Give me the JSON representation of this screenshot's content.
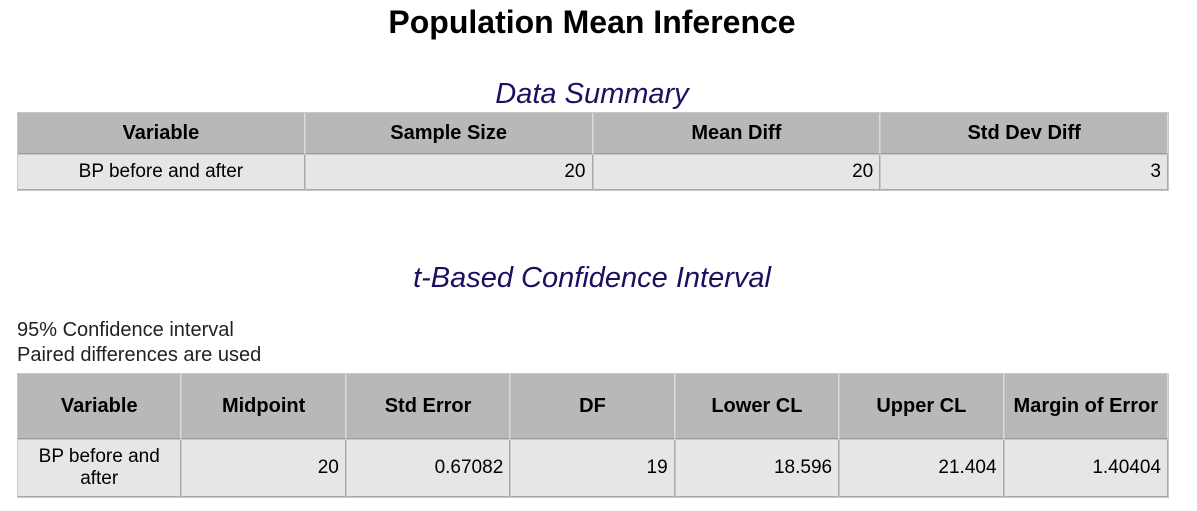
{
  "title": "Population Mean Inference",
  "data_summary": {
    "title": "Data Summary",
    "headers": [
      "Variable",
      "Sample Size",
      "Mean Diff",
      "Std Dev Diff"
    ],
    "row": {
      "variable": "BP before and after",
      "sample_size": "20",
      "mean_diff": "20",
      "std_dev_diff": "3"
    }
  },
  "confidence_interval": {
    "title": "t-Based Confidence Interval",
    "notes": [
      "95% Confidence interval",
      "Paired differences are used"
    ],
    "headers": [
      "Variable",
      "Midpoint",
      "Std Error",
      "DF",
      "Lower CL",
      "Upper CL",
      "Margin of Error"
    ],
    "row": {
      "variable": "BP before and after",
      "midpoint": "20",
      "std_error": "0.67082",
      "df": "19",
      "lower_cl": "18.596",
      "upper_cl": "21.404",
      "margin_of_error": "1.40404"
    }
  }
}
